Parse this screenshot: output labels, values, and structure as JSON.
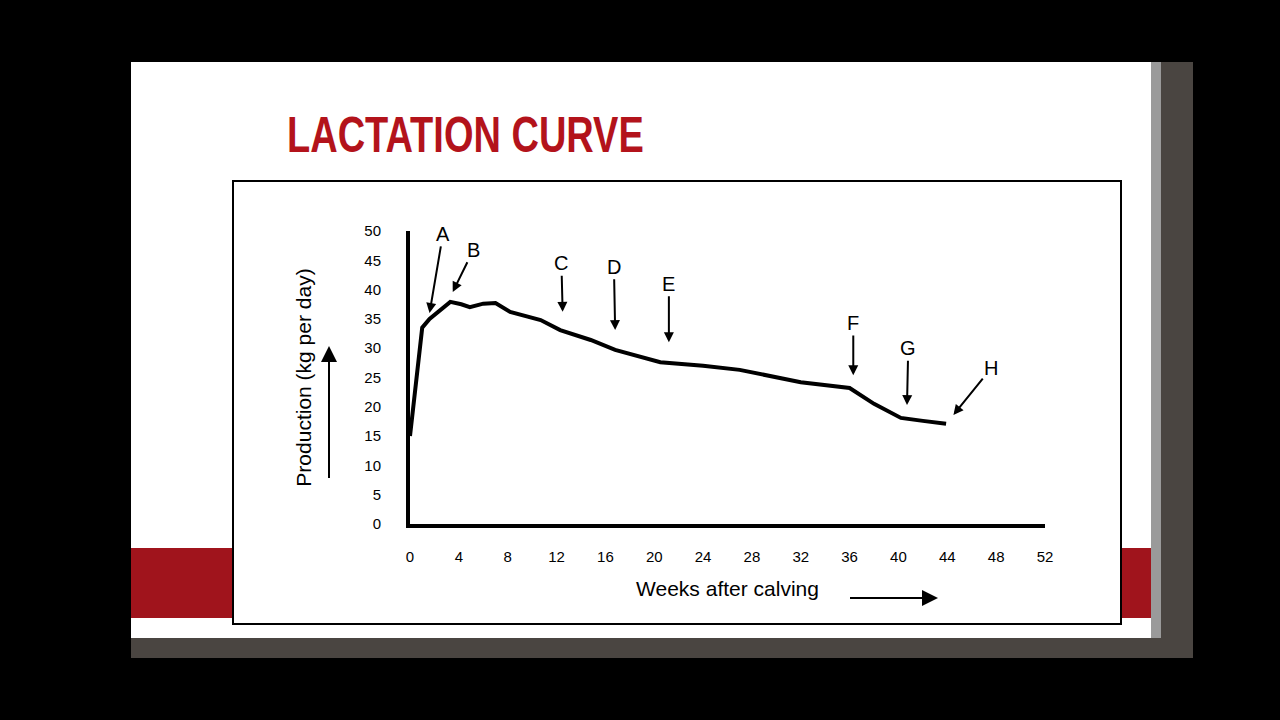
{
  "chart_data": {
    "type": "line",
    "title": "LACTATION CURVE",
    "x_label": "Weeks after calving",
    "y_label": "Production (kg per day)",
    "x": [
      0,
      1,
      1.6,
      2.5,
      3.3,
      4.2,
      4.9,
      6,
      7,
      8.2,
      10.7,
      12.3,
      14.8,
      16.8,
      20.5,
      24,
      27,
      32,
      36,
      38,
      40.2,
      42,
      43.9
    ],
    "values": [
      15,
      33.5,
      35,
      36.5,
      37.9,
      37.5,
      37,
      37.6,
      37.7,
      36.2,
      34.8,
      33.1,
      31.4,
      29.7,
      27.6,
      27,
      26.3,
      24.2,
      23.2,
      20.5,
      18.1,
      17.6,
      17.1
    ],
    "color": "#000000",
    "line_style": "solid",
    "xlim": [
      0,
      52
    ],
    "xticks": [
      0,
      4,
      8,
      12,
      16,
      20,
      24,
      28,
      32,
      36,
      40,
      44,
      48,
      52
    ],
    "ylim": [
      0,
      50
    ],
    "yticks": [
      0,
      5,
      10,
      15,
      20,
      25,
      30,
      35,
      40,
      45,
      50
    ],
    "grid": false,
    "annotations": [
      {
        "text": "A",
        "x": 1.6,
        "y": 36,
        "text_x": 2.7,
        "text_y": 49.5
      },
      {
        "text": "B",
        "x": 3.5,
        "y": 39.6,
        "text_x": 5.2,
        "text_y": 46.8
      },
      {
        "text": "C",
        "x": 12.5,
        "y": 36.2,
        "text_x": 12.4,
        "text_y": 44.5
      },
      {
        "text": "D",
        "x": 16.8,
        "y": 33.1,
        "text_x": 16.7,
        "text_y": 43.9
      },
      {
        "text": "E",
        "x": 21.2,
        "y": 31,
        "text_x": 21.2,
        "text_y": 41
      },
      {
        "text": "F",
        "x": 36.3,
        "y": 25.4,
        "text_x": 36.3,
        "text_y": 34.3
      },
      {
        "text": "G",
        "x": 40.7,
        "y": 20.3,
        "text_x": 40.8,
        "text_y": 30
      },
      {
        "text": "H",
        "x": 44.5,
        "y": 18.6,
        "text_x": 47.6,
        "text_y": 26.6
      }
    ]
  }
}
